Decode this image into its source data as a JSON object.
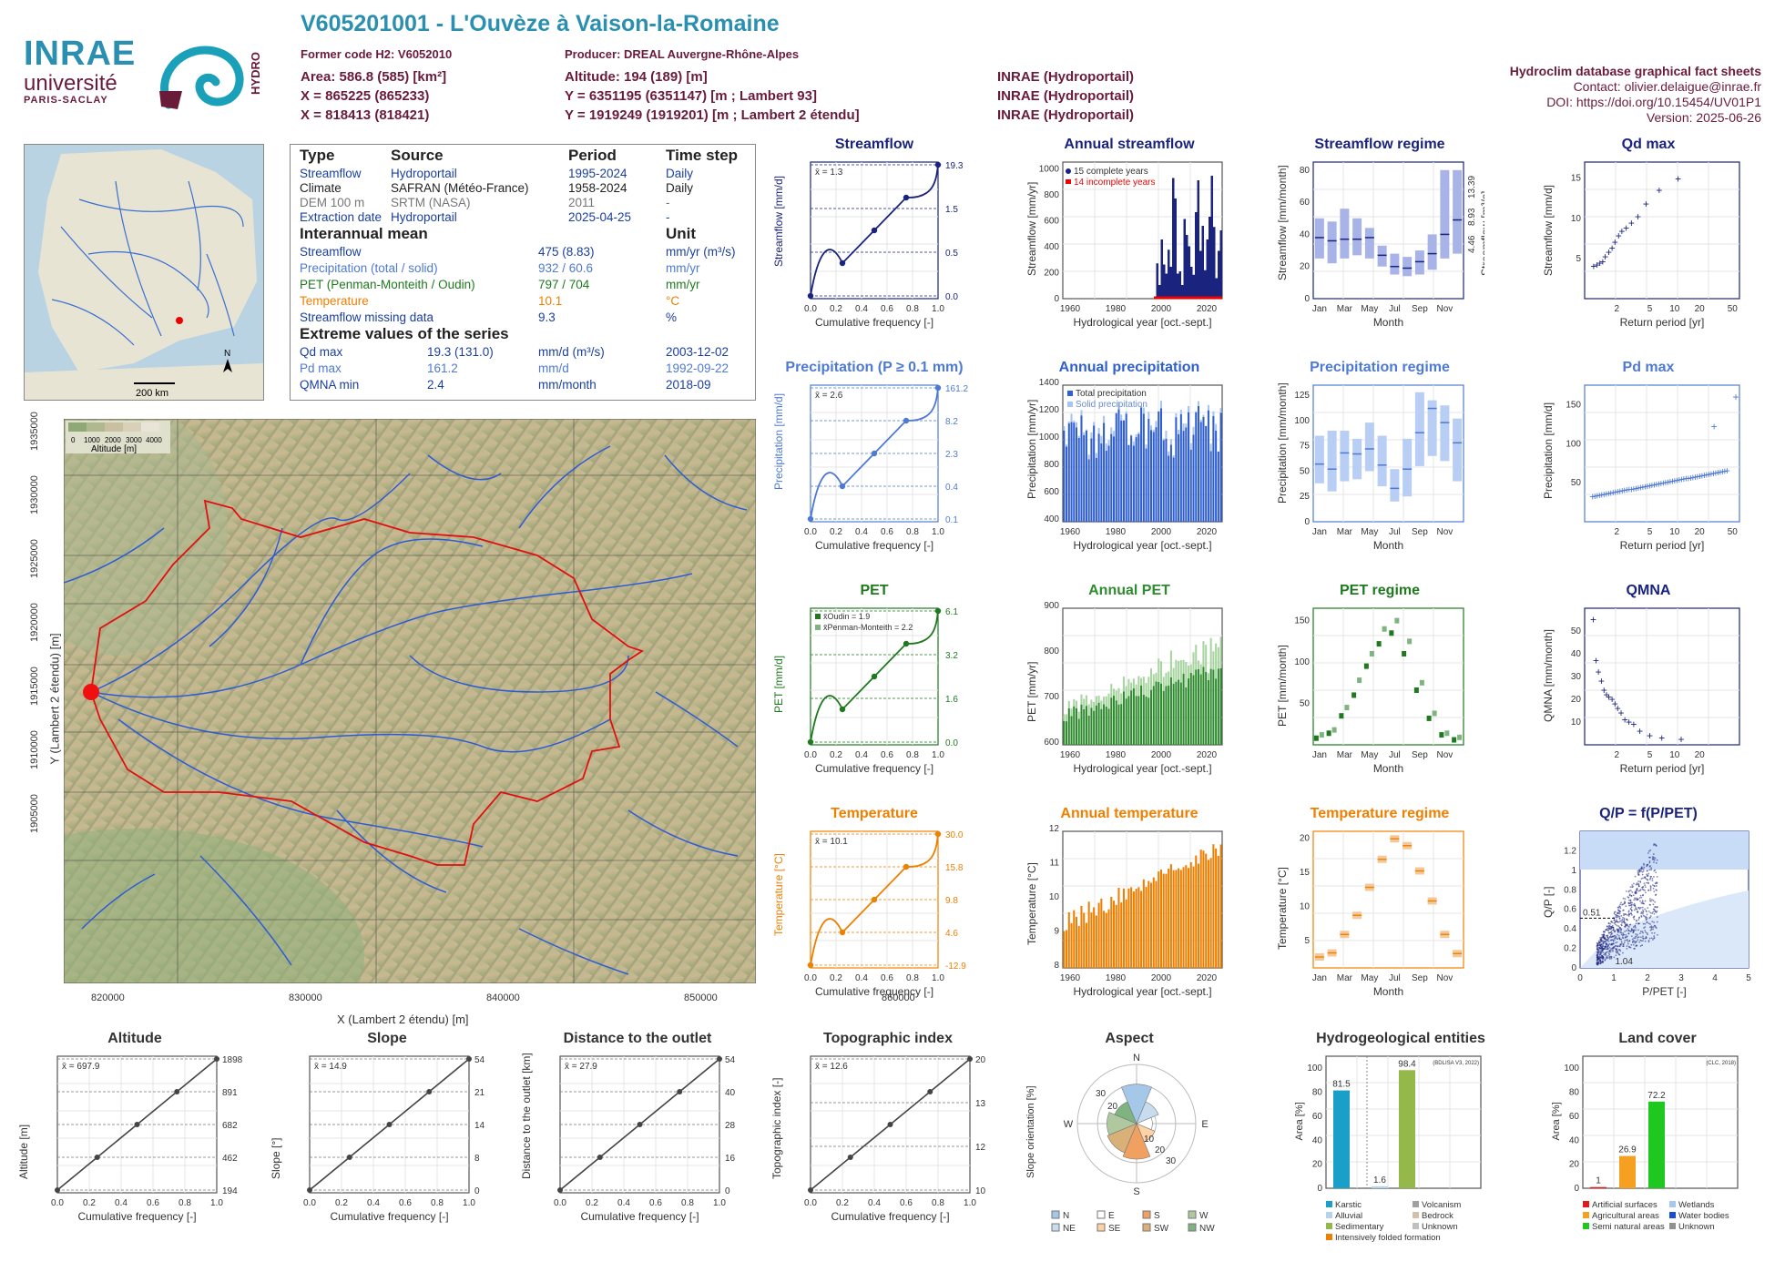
{
  "header": {
    "code_title": "V605201001 - L'Ouvèze à Vaison-la-Romaine",
    "former_code": "Former code H2: V6052010",
    "producer": "Producer: DREAL Auvergne-Rhône-Alpes",
    "area": "Area: 586.8 (585) [km²]",
    "x_lambert93": "X = 865225 (865233)",
    "x_lambert2": "X = 818413 (818421)",
    "altitude": "Altitude: 194 (189) [m]",
    "y_lambert93": "Y = 6351195 (6351147) [m ; Lambert 93]",
    "y_lambert2": "Y = 1919249 (1919201) [m ; Lambert 2 étendu]",
    "src1": "INRAE (Hydroportail)",
    "src2": "INRAE (Hydroportail)",
    "src3": "INRAE (Hydroportail)",
    "db_title": "Hydroclim database graphical fact sheets",
    "contact": "Contact: olivier.delaigue@inrae.fr",
    "doi": "DOI: https://doi.org/10.15454/UV01P1",
    "version": "Version: 2025-06-26"
  },
  "logos": {
    "inrae": "INRAE",
    "universite": "université",
    "paris_saclay": "PARIS-SACLAY",
    "hydro": "HYDRO"
  },
  "info": {
    "col_type": "Type",
    "col_source": "Source",
    "col_period": "Period",
    "col_timestep": "Time step",
    "rows": [
      {
        "type": "Streamflow",
        "source": "Hydroportail",
        "period": "1995-2024",
        "step": "Daily",
        "color": "#1a3fa0"
      },
      {
        "type": "Climate",
        "source": "SAFRAN (Météo-France)",
        "period": "1958-2024",
        "step": "Daily",
        "color": "#222222"
      },
      {
        "type": "DEM 100 m",
        "source": "SRTM (NASA)",
        "period": "2011",
        "step": "-",
        "color": "#777777"
      },
      {
        "type": "Extraction date",
        "source": "Hydroportail",
        "period": "2025-04-25",
        "step": "-",
        "color": "#1a3fa0"
      }
    ],
    "interannual_title": "Interannual mean",
    "unit_title": "Unit",
    "means": [
      {
        "label": "Streamflow",
        "value": "475 (8.83)",
        "unit": "mm/yr (m³/s)",
        "color": "#1a3fa0"
      },
      {
        "label": "Precipitation (total / solid)",
        "value": "932 / 60.6",
        "unit": "mm/yr",
        "color": "#4f7ad4"
      },
      {
        "label": "PET (Penman-Monteith / Oudin)",
        "value": "797 / 704",
        "unit": "mm/yr",
        "color": "#1f7a1f"
      },
      {
        "label": "Temperature",
        "value": "10.1",
        "unit": "°C",
        "color": "#ef7f00"
      },
      {
        "label": "Streamflow missing data",
        "value": "9.3",
        "unit": "%",
        "color": "#1a3fa0"
      }
    ],
    "extreme_title": "Extreme values of the series",
    "extremes": [
      {
        "label": "Qd max",
        "value": "19.3 (131.0)",
        "unit": "mm/d (m³/s)",
        "date": "2003-12-02",
        "color": "#1a3fa0"
      },
      {
        "label": "Pd max",
        "value": "161.2",
        "unit": "mm/d",
        "date": "1992-09-22",
        "color": "#4f7ad4"
      },
      {
        "label": "QMNA min",
        "value": "2.4",
        "unit": "mm/month",
        "date": "2018-09",
        "color": "#1a3fa0"
      }
    ]
  },
  "inset_map": {
    "scale": "200 km",
    "north": "N"
  },
  "main_map": {
    "legend_title": "Altitude [m]",
    "legend_ticks": [
      "0",
      "1000",
      "2000",
      "3000",
      "4000"
    ],
    "xlabel": "X (Lambert 2 étendu) [m]",
    "ylabel": "Y (Lambert 2 étendu) [m]",
    "xticks": [
      "820000",
      "830000",
      "840000",
      "850000",
      "860000"
    ],
    "yticks": [
      "1935000",
      "1930000",
      "1925000",
      "1920000",
      "1915000",
      "1910000",
      "1905000"
    ]
  },
  "chart_data": [
    {
      "id": "streamflow_cdf",
      "type": "line",
      "title": "Streamflow",
      "xlabel": "Cumulative frequency [-]",
      "ylabel": "Streamflow [mm/d]",
      "mean_label": "x̄ = 1.3",
      "right_ticks": [
        "19.3",
        "1.5",
        "0.5",
        "0.0"
      ],
      "x": [
        0,
        0.25,
        0.5,
        0.75,
        1
      ],
      "values": [
        0.0,
        0.5,
        0.9,
        1.5,
        19.3
      ],
      "color": "#1a237e"
    },
    {
      "id": "precip_cdf",
      "type": "line",
      "title": "Precipitation (P ≥ 0.1 mm)",
      "xlabel": "Cumulative frequency [-]",
      "ylabel": "Precipitation [mm/d]",
      "mean_label": "x̄ = 2.6",
      "right_ticks": [
        "161.2",
        "8.2",
        "2.3",
        "0.4",
        "0.1"
      ],
      "x": [
        0,
        0.25,
        0.5,
        0.75,
        1
      ],
      "values": [
        0.1,
        0.4,
        2.3,
        8.2,
        161.2
      ],
      "color": "#4f7ad4"
    },
    {
      "id": "pet_cdf",
      "type": "line",
      "title": "PET",
      "xlabel": "Cumulative frequency [-]",
      "ylabel": "PET [mm/d]",
      "legend": [
        "x̄Oudin = 1.9",
        "x̄Penman-Monteith = 2.2"
      ],
      "right_ticks": [
        "6.1",
        "3.2",
        "1.6",
        "0.0"
      ],
      "x": [
        0,
        0.25,
        0.5,
        0.75,
        1
      ],
      "values": [
        0.0,
        0.5,
        1.6,
        3.2,
        6.1
      ],
      "color": "#1f7a1f"
    },
    {
      "id": "temp_cdf",
      "type": "line",
      "title": "Temperature",
      "xlabel": "Cumulative frequency [-]",
      "ylabel": "Temperature [°C]",
      "mean_label": "x̄ = 10.1",
      "right_ticks": [
        "30.0",
        "15.8",
        "9.8",
        "4.6",
        "-12.9"
      ],
      "x": [
        0,
        0.25,
        0.5,
        0.75,
        1
      ],
      "values": [
        -12.9,
        4.6,
        9.8,
        15.8,
        30.0
      ],
      "color": "#ef7f00"
    },
    {
      "id": "annual_streamflow",
      "type": "bar",
      "title": "Annual streamflow",
      "xlabel": "Hydrological year [oct.-sept.]",
      "ylabel": "Streamflow [mm/yr]",
      "legend": [
        "15 complete years",
        "14 incomplete years"
      ],
      "xticks": [
        "1960",
        "1980",
        "2000",
        "2020"
      ],
      "yticks": [
        "0",
        "200",
        "400",
        "600",
        "800",
        "1000"
      ],
      "ylim": [
        0,
        1200
      ],
      "years": [
        1996,
        1997,
        1998,
        1999,
        2000,
        2001,
        2002,
        2003,
        2004,
        2005,
        2006,
        2007,
        2008,
        2009,
        2010,
        2011,
        2012,
        2013,
        2014,
        2015,
        2016,
        2017,
        2018,
        2019,
        2020,
        2021,
        2022,
        2023,
        2024
      ],
      "values": [
        310,
        120,
        520,
        300,
        220,
        430,
        280,
        1060,
        880,
        220,
        240,
        120,
        700,
        560,
        460,
        280,
        210,
        760,
        1040,
        420,
        640,
        250,
        520,
        720,
        1080,
        630,
        180,
        420,
        600
      ],
      "color": "#1a237e"
    },
    {
      "id": "annual_precip",
      "type": "bar",
      "title": "Annual precipitation",
      "xlabel": "Hydrological year [oct.-sept.]",
      "ylabel": "Precipitation [mm/yr]",
      "legend": [
        "Total precipitation",
        "Solid precipitation"
      ],
      "xticks": [
        "1960",
        "1980",
        "2000",
        "2020"
      ],
      "yticks": [
        "400",
        "600",
        "800",
        "1000",
        "1200",
        "1400"
      ],
      "ylim": [
        400,
        1450
      ],
      "color": "#2f5fd0"
    },
    {
      "id": "annual_pet",
      "type": "bar",
      "title": "Annual PET",
      "xlabel": "Hydrological year [oct.-sept.]",
      "ylabel": "PET [mm/yr]",
      "xticks": [
        "1960",
        "1980",
        "2000",
        "2020"
      ],
      "yticks": [
        "600",
        "700",
        "800",
        "900"
      ],
      "ylim": [
        580,
        1000
      ],
      "color": "#2e8b2e"
    },
    {
      "id": "annual_temp",
      "type": "bar",
      "title": "Annual temperature",
      "xlabel": "Hydrological year [oct.-sept.]",
      "ylabel": "Temperature [°C]",
      "xticks": [
        "1960",
        "1980",
        "2000",
        "2020"
      ],
      "yticks": [
        "8",
        "9",
        "10",
        "11",
        "12"
      ],
      "ylim": [
        7.9,
        12.3
      ],
      "color": "#ef7f00"
    },
    {
      "id": "streamflow_regime",
      "type": "bar",
      "title": "Streamflow regime",
      "xlabel": "Month",
      "ylabel": "Streamflow [mm/month]",
      "months": [
        "Jan",
        "Mar",
        "May",
        "Jul",
        "Sep",
        "Nov"
      ],
      "yticks": [
        "0",
        "20",
        "40",
        "60",
        "80"
      ],
      "right_ticks": [
        "13.39",
        "8.93",
        "4.46"
      ],
      "right_label": "Streamflow [m³/s]",
      "ylim": [
        0,
        85
      ],
      "medians": [
        38,
        36,
        37,
        37,
        38,
        27,
        20,
        19,
        23,
        28,
        40,
        49
      ],
      "low": [
        25,
        22,
        25,
        27,
        25,
        20,
        15,
        14,
        15,
        18,
        25,
        28
      ],
      "high": [
        50,
        48,
        56,
        50,
        44,
        33,
        28,
        26,
        30,
        40,
        80,
        80
      ],
      "color": "#1a237e"
    },
    {
      "id": "precip_regime",
      "type": "bar",
      "title": "Precipitation regime",
      "xlabel": "Month",
      "ylabel": "Precipitation [mm/month]",
      "months": [
        "Jan",
        "Mar",
        "May",
        "Jul",
        "Sep",
        "Nov"
      ],
      "yticks": [
        "0",
        "25",
        "50",
        "75",
        "100",
        "125"
      ],
      "ylim": [
        0,
        135
      ],
      "medians": [
        57,
        52,
        68,
        67,
        72,
        56,
        33,
        52,
        88,
        112,
        98,
        78
      ],
      "low": [
        38,
        30,
        40,
        42,
        50,
        35,
        20,
        25,
        55,
        65,
        60,
        40
      ],
      "high": [
        85,
        90,
        90,
        82,
        98,
        85,
        52,
        82,
        128,
        120,
        115,
        102
      ],
      "color": "#4f7ad4"
    },
    {
      "id": "pet_regime",
      "type": "bar",
      "title": "PET regime",
      "xlabel": "Month",
      "ylabel": "PET [mm/month]",
      "months": [
        "Jan",
        "Mar",
        "May",
        "Jul",
        "Sep",
        "Nov"
      ],
      "yticks": [
        "50",
        "100",
        "150"
      ],
      "ylim": [
        0,
        165
      ],
      "oudin": [
        8,
        14,
        35,
        60,
        95,
        122,
        135,
        110,
        66,
        32,
        12,
        6
      ],
      "penman": [
        12,
        18,
        45,
        78,
        110,
        140,
        150,
        125,
        75,
        38,
        14,
        9
      ],
      "color": "#1f7a1f"
    },
    {
      "id": "temp_regime",
      "type": "bar",
      "title": "Temperature regime",
      "xlabel": "Month",
      "ylabel": "Temperature [°C]",
      "months": [
        "Jan",
        "Mar",
        "May",
        "Jul",
        "Sep",
        "Nov"
      ],
      "yticks": [
        "5",
        "10",
        "15",
        "20"
      ],
      "ylim": [
        1,
        21
      ],
      "medians": [
        2.6,
        3.2,
        5.9,
        8.7,
        12.8,
        16.9,
        19.9,
        18.9,
        15.2,
        10.8,
        5.9,
        3.1
      ],
      "color": "#ef7f00"
    },
    {
      "id": "qd_max",
      "type": "scatter",
      "title": "Qd max",
      "xlabel": "Return period [yr]",
      "ylabel": "Streamflow [mm/d]",
      "xticks": [
        "2",
        "5",
        "10",
        "20",
        "50"
      ],
      "yticks": [
        "5",
        "10",
        "15"
      ],
      "ylim": [
        0,
        17
      ],
      "x": [
        1.05,
        1.15,
        1.25,
        1.35,
        1.45,
        1.6,
        1.75,
        1.9,
        2.1,
        2.3,
        2.6,
        3.0,
        3.6,
        4.5,
        6.5,
        11
      ],
      "values": [
        4.0,
        4.2,
        4.4,
        4.6,
        5.2,
        5.8,
        6.3,
        7.0,
        7.8,
        8.4,
        8.8,
        9.4,
        10.2,
        11.8,
        13.5,
        14.9
      ],
      "color": "#1a237e"
    },
    {
      "id": "pd_max",
      "type": "scatter",
      "title": "Pd max",
      "xlabel": "Return period [yr]",
      "ylabel": "Precipitation [mm/d]",
      "xticks": [
        "2",
        "5",
        "10",
        "20",
        "50"
      ],
      "yticks": [
        "50",
        "100",
        "150"
      ],
      "ylim": [
        0,
        175
      ],
      "color": "#4f7ad4"
    },
    {
      "id": "qmna",
      "type": "scatter",
      "title": "QMNA",
      "xlabel": "Return period [yr]",
      "ylabel": "QMNA [mm/month]",
      "xticks": [
        "2",
        "5",
        "10",
        "20"
      ],
      "yticks": [
        "10",
        "20",
        "30",
        "40",
        "50"
      ],
      "ylim": [
        0,
        60
      ],
      "x": [
        1.04,
        1.12,
        1.2,
        1.3,
        1.4,
        1.5,
        1.6,
        1.75,
        1.9,
        2.05,
        2.25,
        2.5,
        2.8,
        3.2,
        3.8,
        5,
        7,
        12
      ],
      "values": [
        55,
        37,
        32,
        28,
        24,
        22,
        21,
        20,
        18,
        16,
        14,
        11,
        10,
        9,
        6,
        4,
        3,
        2.4
      ],
      "color": "#1a237e"
    },
    {
      "id": "qp_ppet",
      "type": "scatter",
      "title": "Q/P = f(P/PET)",
      "xlabel": "P/PET [-]",
      "ylabel": "Q/P [-]",
      "xticks": [
        "0",
        "0.5",
        "1",
        "1.5",
        "2",
        "2.5",
        "3",
        "3.5",
        "4",
        "4.5",
        "5"
      ],
      "yticks": [
        "0",
        "0.2",
        "0.4",
        "0.6",
        "0.8",
        "1",
        "1.2"
      ],
      "annotations": [
        "0.51",
        "1.04"
      ],
      "xlim": [
        0,
        5
      ],
      "ylim": [
        0,
        1.4
      ],
      "color": "#1a237e"
    },
    {
      "id": "altitude_cdf",
      "type": "line",
      "title": "Altitude",
      "xlabel": "Cumulative frequency [-]",
      "ylabel": "Altitude [m]",
      "mean_label": "x̄ = 697.9",
      "right_ticks": [
        "1898",
        "891",
        "682",
        "462",
        "194"
      ],
      "x": [
        0,
        0.25,
        0.5,
        0.75,
        1
      ],
      "values": [
        194,
        462,
        682,
        891,
        1898
      ],
      "color": "#555555"
    },
    {
      "id": "slope_cdf",
      "type": "line",
      "title": "Slope",
      "xlabel": "Cumulative frequency [-]",
      "ylabel": "Slope [°]",
      "mean_label": "x̄ = 14.9",
      "right_ticks": [
        "54",
        "21",
        "14",
        "8",
        "0"
      ],
      "x": [
        0,
        0.25,
        0.5,
        0.75,
        1
      ],
      "values": [
        0,
        8,
        14,
        21,
        54
      ],
      "color": "#555555"
    },
    {
      "id": "distance_cdf",
      "type": "line",
      "title": "Distance to the outlet",
      "xlabel": "Cumulative frequency [-]",
      "ylabel": "Distance to the outlet [km]",
      "mean_label": "x̄ = 27.9",
      "right_ticks": [
        "54",
        "40",
        "28",
        "16",
        "0"
      ],
      "x": [
        0,
        0.25,
        0.5,
        0.75,
        1
      ],
      "values": [
        0,
        16,
        28,
        40,
        54
      ],
      "color": "#555555"
    },
    {
      "id": "topo_cdf",
      "type": "line",
      "title": "Topographic index",
      "xlabel": "Cumulative frequency [-]",
      "ylabel": "Topographic index [-]",
      "mean_label": "x̄ = 12.6",
      "right_ticks": [
        "20",
        "13",
        "12",
        "10"
      ],
      "x": [
        0,
        0.25,
        0.5,
        0.75,
        1
      ],
      "values": [
        10,
        12,
        12.5,
        13,
        20
      ],
      "color": "#555555"
    },
    {
      "id": "aspect",
      "type": "pie",
      "title": "Aspect",
      "ylabel": "Slope orientation [%]",
      "directions": [
        "N",
        "NE",
        "E",
        "SE",
        "S",
        "SW",
        "W",
        "NW"
      ],
      "values": [
        20,
        12,
        8,
        10,
        18,
        16,
        15,
        12
      ],
      "colors": [
        "#a6c8e8",
        "#c8dcf0",
        "#ffffff",
        "#ffd2a6",
        "#f0a060",
        "#d8b078",
        "#b0c8a0",
        "#7fb37f"
      ],
      "legend": [
        "N",
        "NE",
        "E",
        "SE",
        "S",
        "SW",
        "W",
        "NW"
      ],
      "ring_ticks": [
        "10",
        "20",
        "30"
      ]
    },
    {
      "id": "hydrogeology",
      "type": "bar",
      "title": "Hydrogeological entities",
      "source_note": "(BDLISA V3, 2022)",
      "ylabel": "Area [%]",
      "yticks": [
        "0",
        "20",
        "40",
        "60",
        "80",
        "100"
      ],
      "bars": [
        {
          "label": "Karstic",
          "value": 81.5,
          "color": "#1aa0c8"
        },
        {
          "label": "Alluvial",
          "value": 1.6,
          "color": "#b4d2ea"
        },
        {
          "label": "Sedimentary",
          "value": 98.4,
          "color": "#94b84a"
        }
      ],
      "legend": [
        {
          "label": "Karstic",
          "color": "#1aa0c8"
        },
        {
          "label": "Volcanism",
          "color": "#a0a0a0"
        },
        {
          "label": "Alluvial",
          "color": "#b4d2ea"
        },
        {
          "label": "Bedrock",
          "color": "#d4c0a8"
        },
        {
          "label": "Sedimentary",
          "color": "#94b84a"
        },
        {
          "label": "Unknown",
          "color": "#c0c0c0"
        },
        {
          "label": "Intensively folded formation",
          "color": "#ef7f00"
        }
      ]
    },
    {
      "id": "land_cover",
      "type": "bar",
      "title": "Land cover",
      "source_note": "(CLC, 2018)",
      "ylabel": "Area [%]",
      "yticks": [
        "0",
        "20",
        "40",
        "60",
        "80",
        "100"
      ],
      "bars": [
        {
          "label": "Artificial surfaces",
          "value": 1,
          "color": "#e21a1a"
        },
        {
          "label": "Agricultural areas",
          "value": 26.9,
          "color": "#f5a020"
        },
        {
          "label": "Semi natural areas",
          "value": 72.2,
          "color": "#1ec81e"
        }
      ],
      "legend": [
        {
          "label": "Artificial surfaces",
          "color": "#e21a1a"
        },
        {
          "label": "Wetlands",
          "color": "#a8c8f0"
        },
        {
          "label": "Agricultural areas",
          "color": "#f5a020"
        },
        {
          "label": "Water bodies",
          "color": "#1a50d0"
        },
        {
          "label": "Semi natural areas",
          "color": "#1ec81e"
        },
        {
          "label": "Unknown",
          "color": "#909090"
        }
      ]
    }
  ]
}
